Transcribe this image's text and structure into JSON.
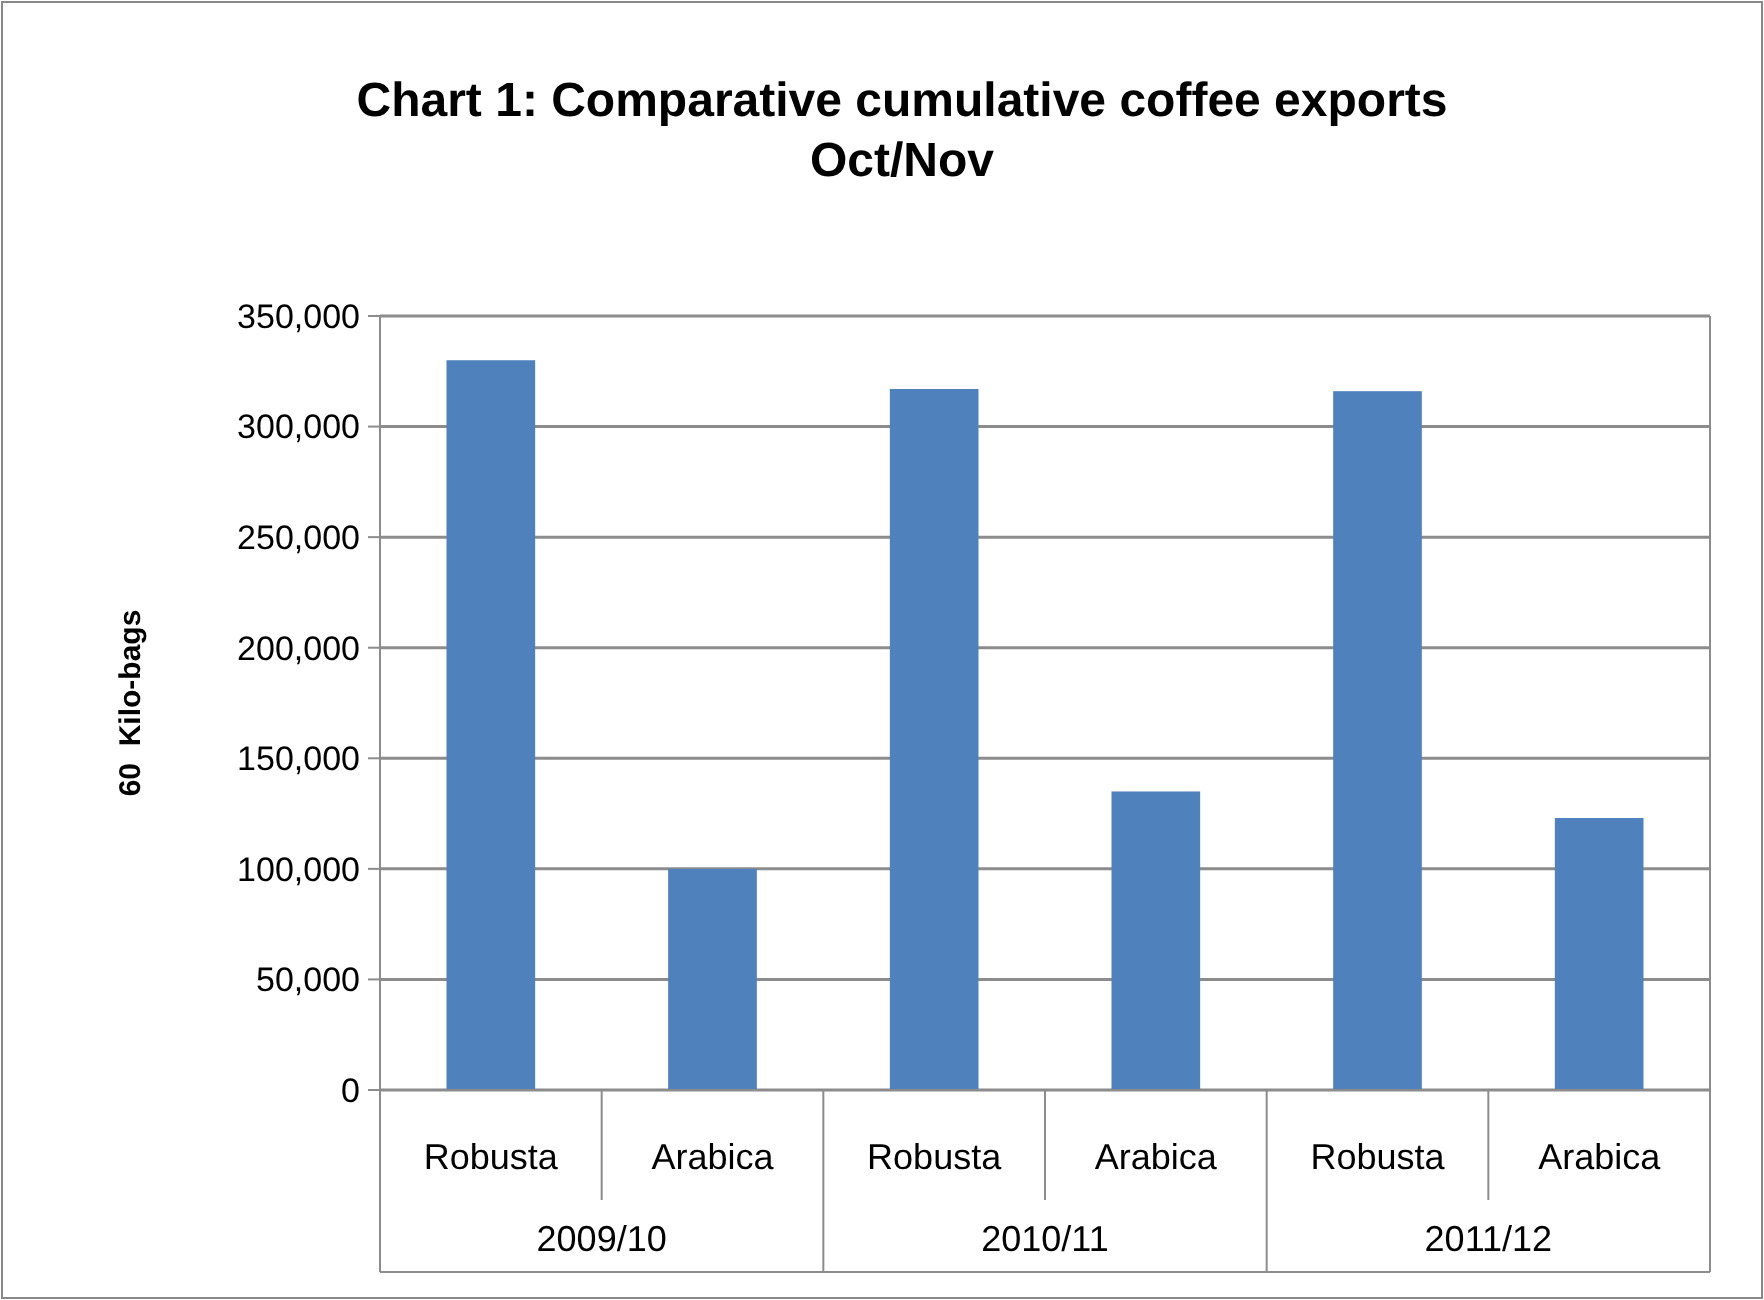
{
  "chart_data": {
    "type": "bar",
    "title": "Chart 1: Comparative cumulative coffee exports Oct/Nov",
    "ylabel": "60  Kilo-bags",
    "categories": [
      "Robusta",
      "Arabica",
      "Robusta",
      "Arabica",
      "Robusta",
      "Arabica"
    ],
    "values": [
      330000,
      100000,
      317000,
      135000,
      316000,
      123000
    ],
    "color": "#4f81bd",
    "ylim": [
      0,
      350000
    ],
    "yticks": [
      {
        "value": 0,
        "label": "0"
      },
      {
        "value": 50000,
        "label": "50,000"
      },
      {
        "value": 100000,
        "label": "100,000"
      },
      {
        "value": 150000,
        "label": "150,000"
      },
      {
        "value": 200000,
        "label": "200,000"
      },
      {
        "value": 250000,
        "label": "250,000"
      },
      {
        "value": 300000,
        "label": "300,000"
      },
      {
        "value": 350000,
        "label": "350,000"
      }
    ],
    "grid": "y",
    "annotations": [
      "2009/10",
      "2010/11",
      "2011/12"
    ]
  }
}
